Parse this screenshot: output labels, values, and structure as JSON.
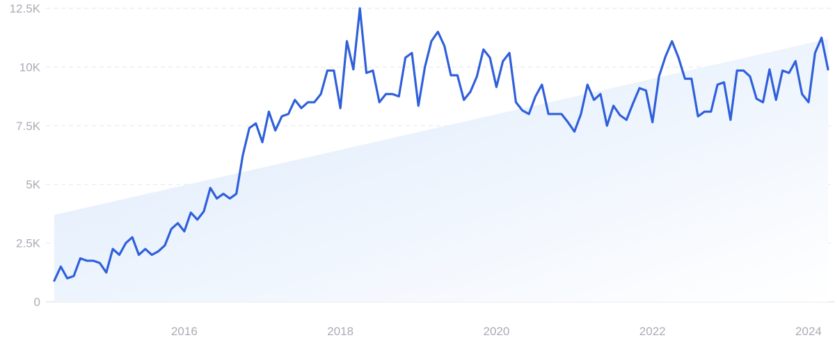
{
  "chart_data": {
    "type": "line",
    "title": "",
    "xlabel": "",
    "ylabel": "",
    "x_ticks": [
      "2016",
      "2018",
      "2020",
      "2022",
      "2024"
    ],
    "y_ticks": [
      "0",
      "2.5K",
      "5K",
      "7.5K",
      "10K",
      "12.5K"
    ],
    "y_tick_values": [
      0,
      2500,
      5000,
      7500,
      10000,
      12500
    ],
    "ylim": [
      0,
      12500
    ],
    "grid": true,
    "colors": {
      "line": "#2f5fdb",
      "trend_fill_top": "#dbe9fb",
      "trend_fill_bottom": "#ffffff"
    },
    "trend": {
      "start": 3700,
      "end": 11200
    },
    "series": [
      {
        "values": [
          900,
          1500,
          1000,
          1100,
          1850,
          1750,
          1750,
          1650,
          1250,
          2250,
          2000,
          2500,
          2750,
          2000,
          2250,
          2000,
          2150,
          2400,
          3100,
          3350,
          3000,
          3800,
          3500,
          3850,
          4850,
          4400,
          4600,
          4400,
          4600,
          6250,
          7400,
          7600,
          6800,
          8100,
          7300,
          7900,
          8000,
          8600,
          8250,
          8500,
          8500,
          8850,
          9850,
          9850,
          8250,
          11100,
          9900,
          12500,
          9750,
          9850,
          8500,
          8850,
          8850,
          8750,
          10400,
          10600,
          8350,
          10000,
          11100,
          11500,
          10900,
          9650,
          9650,
          8600,
          8950,
          9600,
          10750,
          10400,
          9150,
          10250,
          10600,
          8500,
          8150,
          8000,
          8750,
          9250,
          8000,
          8000,
          8000,
          7650,
          7250,
          8000,
          9250,
          8600,
          8850,
          7500,
          8350,
          7950,
          7750,
          8450,
          9100,
          9000,
          7650,
          9600,
          10450,
          11100,
          10400,
          9500,
          9500,
          7900,
          8100,
          8100,
          9250,
          9350,
          7750,
          9850,
          9850,
          9600,
          8650,
          8500,
          9900,
          8600,
          9850,
          9750,
          10250,
          8850,
          8500,
          10600,
          11250,
          9900
        ]
      }
    ]
  }
}
